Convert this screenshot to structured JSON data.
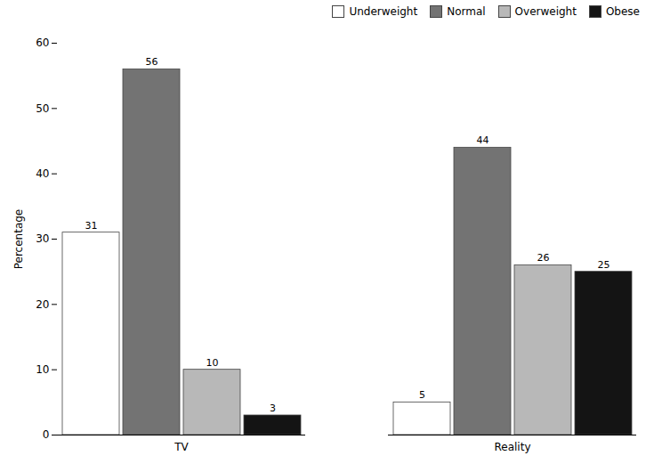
{
  "chart_data": {
    "type": "bar",
    "categories": [
      "TV",
      "Reality"
    ],
    "series": [
      {
        "name": "Underweight",
        "color": "#ffffff",
        "values": [
          31,
          5
        ]
      },
      {
        "name": "Normal",
        "color": "#737373",
        "values": [
          56,
          44
        ]
      },
      {
        "name": "Overweight",
        "color": "#b8b8b8",
        "values": [
          10,
          26
        ]
      },
      {
        "name": "Obese",
        "color": "#141414",
        "values": [
          3,
          25
        ]
      }
    ],
    "ylabel": "Percentage",
    "ylim": [
      0,
      60
    ],
    "yticks": [
      0,
      10,
      20,
      30,
      40,
      50,
      60
    ],
    "data_labels": true,
    "legend": "upper right",
    "grid": false
  }
}
